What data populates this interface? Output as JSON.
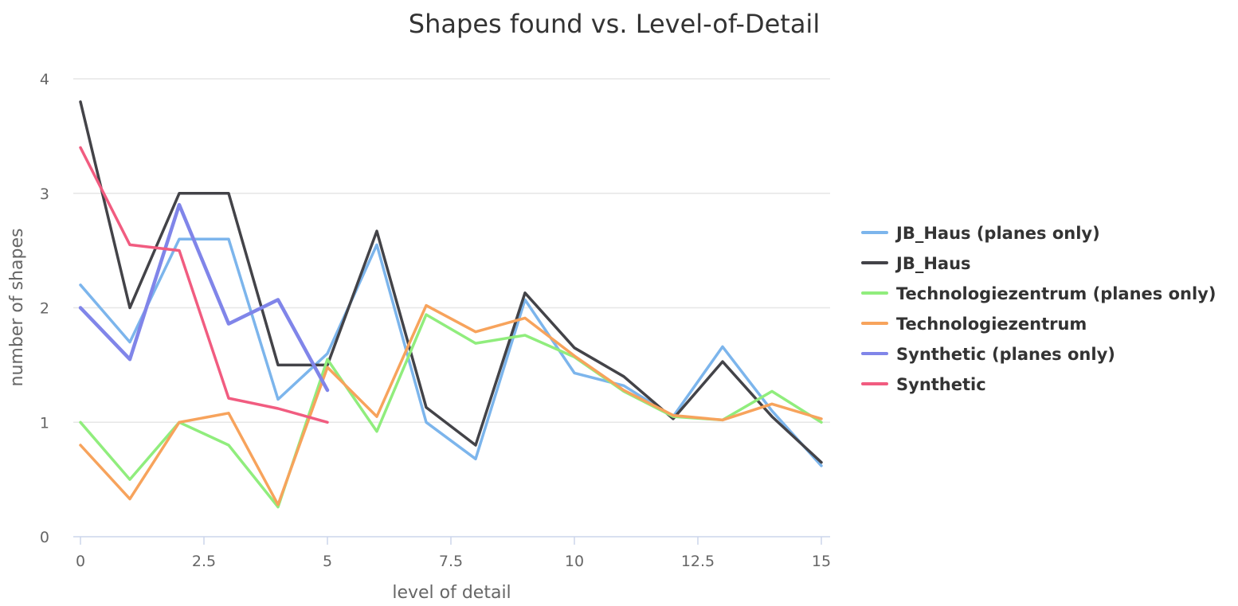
{
  "chart_data": {
    "type": "line",
    "title": "Shapes found vs. Level-of-Detail",
    "xlabel": "level of detail",
    "ylabel": "number of shapes",
    "xlim": [
      0,
      15
    ],
    "ylim": [
      0,
      4
    ],
    "x_ticks": [
      0,
      2.5,
      5,
      7.5,
      10,
      12.5,
      15
    ],
    "x_tick_labels": [
      "0",
      "2.5",
      "5",
      "7.5",
      "10",
      "12.5",
      "15"
    ],
    "y_ticks": [
      0,
      1,
      2,
      3,
      4
    ],
    "y_tick_labels": [
      "0",
      "1",
      "2",
      "3",
      "4"
    ],
    "grid": "horizontal",
    "legend_position": "right",
    "series": [
      {
        "name": "JB_Haus (planes only)",
        "color": "#7cb5ec",
        "x": [
          0,
          1,
          2,
          3,
          4,
          5,
          6,
          7,
          8,
          9,
          10,
          11,
          12,
          13,
          14,
          15
        ],
        "values": [
          2.2,
          1.7,
          2.6,
          2.6,
          1.2,
          1.6,
          2.55,
          1.0,
          0.68,
          2.07,
          1.43,
          1.32,
          1.05,
          1.66,
          1.1,
          0.62
        ]
      },
      {
        "name": "JB_Haus",
        "color": "#434348",
        "x": [
          0,
          1,
          2,
          3,
          4,
          5,
          6,
          7,
          8,
          9,
          10,
          11,
          12,
          13,
          14,
          15
        ],
        "values": [
          3.8,
          2.0,
          3.0,
          3.0,
          1.5,
          1.5,
          2.67,
          1.13,
          0.8,
          2.13,
          1.65,
          1.4,
          1.03,
          1.53,
          1.05,
          0.65
        ]
      },
      {
        "name": "Technologiezentrum (planes only)",
        "color": "#90ed7d",
        "x": [
          0,
          1,
          2,
          3,
          4,
          5,
          6,
          7,
          8,
          9,
          10,
          11,
          12,
          13,
          14,
          15
        ],
        "values": [
          1.0,
          0.5,
          1.0,
          0.8,
          0.26,
          1.55,
          0.92,
          1.94,
          1.69,
          1.76,
          1.57,
          1.27,
          1.05,
          1.02,
          1.27,
          1.0
        ]
      },
      {
        "name": "Technologiezentrum",
        "color": "#f7a35c",
        "x": [
          0,
          1,
          2,
          3,
          4,
          5,
          6,
          7,
          8,
          9,
          10,
          11,
          12,
          13,
          14,
          15
        ],
        "values": [
          0.8,
          0.33,
          1.0,
          1.08,
          0.28,
          1.48,
          1.05,
          2.02,
          1.79,
          1.91,
          1.58,
          1.28,
          1.06,
          1.02,
          1.16,
          1.03
        ]
      },
      {
        "name": "Synthetic (planes only)",
        "color": "#8085e9",
        "x": [
          0,
          1,
          2,
          3,
          4,
          5
        ],
        "values": [
          2.0,
          1.55,
          2.9,
          1.86,
          2.07,
          1.28
        ]
      },
      {
        "name": "Synthetic",
        "color": "#f15c80",
        "x": [
          0,
          1,
          2,
          3,
          4,
          5
        ],
        "values": [
          3.4,
          2.55,
          2.5,
          1.21,
          1.12,
          1.0
        ]
      }
    ]
  }
}
